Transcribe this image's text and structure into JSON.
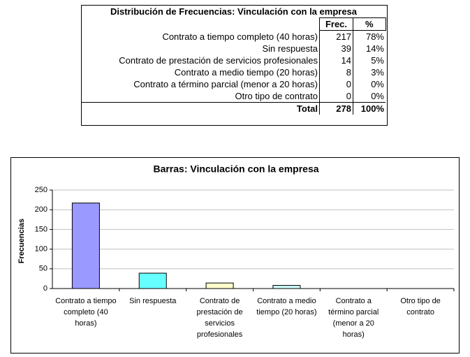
{
  "table": {
    "title": "Distribución de Frecuencias: Vinculación con la empresa",
    "header": [
      "Frec.",
      "%"
    ],
    "rows": [
      [
        "Contrato a tiempo completo (40 horas)",
        "217",
        "78%"
      ],
      [
        "Sin respuesta",
        "39",
        "14%"
      ],
      [
        "Contrato de prestación de servicios profesionales",
        "14",
        "5%"
      ],
      [
        "Contrato a medio tiempo (20 horas)",
        "8",
        "3%"
      ],
      [
        "Contrato a término parcial (menor a 20 horas)",
        "0",
        "0%"
      ],
      [
        "Otro tipo de contrato",
        "0",
        "0%"
      ]
    ],
    "total": [
      "Total",
      "278",
      "100%"
    ]
  },
  "chart_data": {
    "type": "bar",
    "title": "Barras: Vinculación con la empresa",
    "y_label": "Frecuencias",
    "categories": [
      "Contrato a tiempo completo (40 horas)",
      "Sin respuesta",
      "Contrato de prestación de servicios profesionales",
      "Contrato a medio tiempo (20 horas)",
      "Contrato a término parcial (menor a 20 horas)",
      "Otro tipo de contrato"
    ],
    "values": [
      217,
      39,
      14,
      8,
      0,
      0
    ],
    "colors": [
      "#9999ff",
      "#66ffff",
      "#ffffcc",
      "#ccffff",
      "#ffffcc",
      "#ccffff"
    ],
    "ylim": [
      0,
      250
    ],
    "yticks": [
      0,
      50,
      100,
      150,
      200,
      250
    ],
    "grid": true
  }
}
